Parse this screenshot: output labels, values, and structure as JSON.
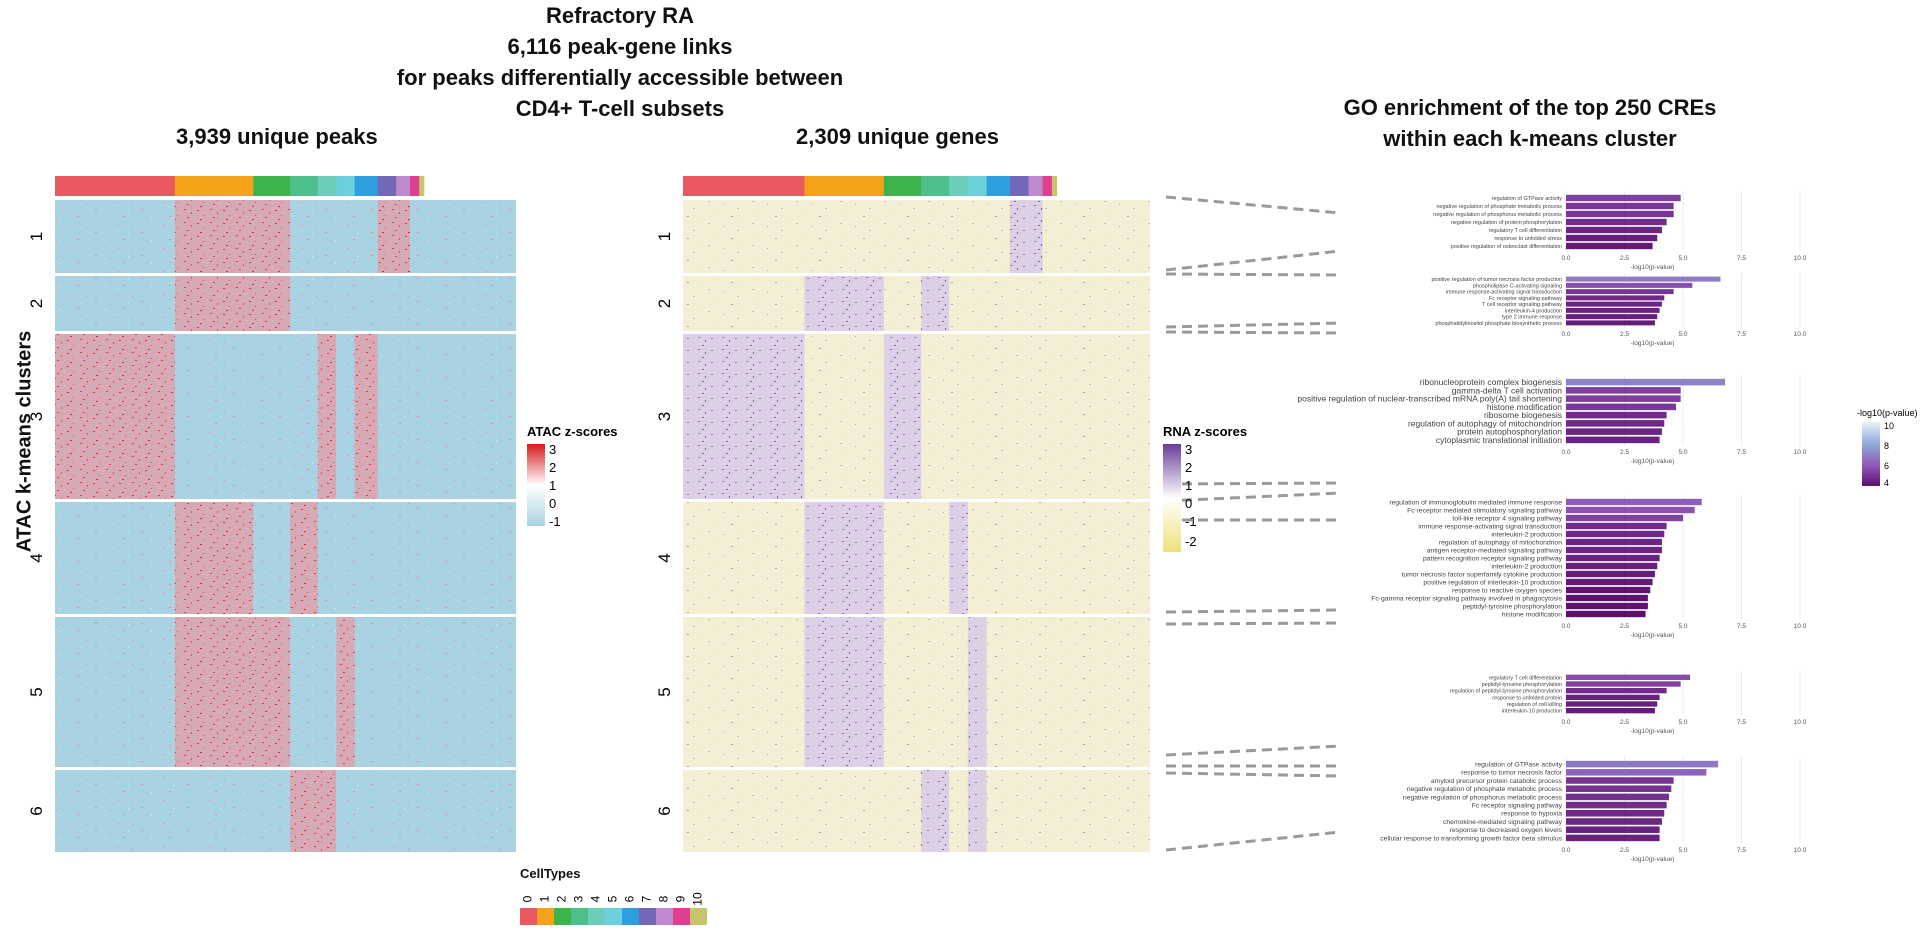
{
  "titles": {
    "main": [
      "Refractory RA",
      "6,116 peak-gene links",
      "for peaks differentially accessible between",
      "CD4+ T-cell subsets"
    ],
    "left_sub": "3,939 unique peaks",
    "mid_sub": "2,309 unique genes",
    "go": [
      "GO enrichment of the top 250 CREs",
      "within each k-means cluster"
    ],
    "y_axis": "ATAC k-means clusters"
  },
  "colors": {
    "atac_low": "#a9d3e3",
    "atac_high": "#e03030",
    "rna_low": "#eee17a",
    "rna_high": "#7a3f99",
    "celltype_palette": [
      "#e8585e",
      "#f5a21b",
      "#3cb44b",
      "#4dbf8a",
      "#6ccdbb",
      "#6ccfdc",
      "#2f9ee0",
      "#7368b7",
      "#c08ad0",
      "#de3f8f",
      "#c6c46c"
    ]
  },
  "legends": {
    "atac": {
      "title": "ATAC z-scores",
      "ticks": [
        "3",
        "2",
        "1",
        "0",
        "-1"
      ]
    },
    "rna": {
      "title": "RNA z-scores",
      "ticks": [
        "3",
        "2",
        "1",
        "0",
        "-1",
        "-2"
      ]
    },
    "go": {
      "title": "-log10(p-value)",
      "ticks": [
        "10",
        "8",
        "6",
        "4"
      ]
    },
    "celltypes": {
      "title": "CellTypes",
      "labels": [
        "0",
        "1",
        "2",
        "3",
        "4",
        "5",
        "6",
        "7",
        "8",
        "9",
        "10"
      ]
    }
  },
  "chart_data": [
    {
      "type": "heatmap",
      "name": "ATAC",
      "row_clusters": [
        "1",
        "2",
        "3",
        "4",
        "5",
        "6"
      ],
      "column_celltypes": [
        "0",
        "1",
        "2",
        "3",
        "4",
        "5",
        "6",
        "7",
        "8",
        "9",
        "10"
      ]
    },
    {
      "type": "heatmap",
      "name": "RNA",
      "row_clusters": [
        "1",
        "2",
        "3",
        "4",
        "5",
        "6"
      ],
      "column_celltypes": [
        "0",
        "1",
        "2",
        "3",
        "4",
        "5",
        "6",
        "7",
        "8",
        "9",
        "10"
      ]
    },
    {
      "type": "bar",
      "cluster": "1",
      "xlabel": "-log10(p-value)",
      "xlim": [
        0,
        10
      ],
      "xticks": [
        "0.0",
        "2.5",
        "5.0",
        "7.5",
        "10.0"
      ],
      "categories": [
        "regulation of GTPase activity",
        "negative regulation of phosphate metabolic process",
        "negative regulation of phosphorus metabolic process",
        "negative regulation of protein phosphorylation",
        "regulatory T cell differentiation",
        "response to unfolded stress",
        "positive regulation of osteoclast differentiation"
      ],
      "values": [
        4.9,
        4.6,
        4.6,
        4.3,
        4.1,
        3.9,
        3.7
      ]
    },
    {
      "type": "bar",
      "cluster": "2",
      "xlabel": "-log10(p-value)",
      "xlim": [
        0,
        10
      ],
      "xticks": [
        "0.0",
        "2.5",
        "5.0",
        "7.5",
        "10.0"
      ],
      "categories": [
        "positive regulation of tumor necrosis factor production",
        "phospholipase C-activating signaling",
        "immune response-activating signal transduction",
        "Fc receptor signaling pathway",
        "T cell receptor signaling pathway",
        "interleukin-4 production",
        "type 2 immune response",
        "phosphatidylinositol phosphate biosynthetic process"
      ],
      "values": [
        6.6,
        5.4,
        4.6,
        4.2,
        4.1,
        4.0,
        3.9,
        3.8
      ]
    },
    {
      "type": "bar",
      "cluster": "3",
      "xlabel": "-log10(p-value)",
      "xlim": [
        0,
        10
      ],
      "xticks": [
        "0.0",
        "2.5",
        "5.0",
        "7.5",
        "10.0"
      ],
      "categories": [
        "ribonucleoprotein complex biogenesis",
        "gamma-delta T cell activation",
        "positive regulation of nuclear-transcribed mRNA poly(A) tail shortening",
        "histone modification",
        "ribosome biogenesis",
        "regulation of autophagy of mitochondrion",
        "protein autophosphorylation",
        "cytoplasmic translational initiation"
      ],
      "values": [
        6.8,
        4.9,
        4.9,
        4.7,
        4.3,
        4.2,
        4.1,
        4.0
      ]
    },
    {
      "type": "bar",
      "cluster": "4",
      "xlabel": "-log10(p-value)",
      "xlim": [
        0,
        10
      ],
      "xticks": [
        "0.0",
        "2.5",
        "5.0",
        "7.5",
        "10.0"
      ],
      "categories": [
        "regulation of immunoglobulin mediated immune response",
        "Fc receptor mediated stimulatory signaling pathway",
        "toll-like receptor 4 signaling pathway",
        "immune response-activating signal transduction",
        "interleukin-2 production",
        "regulation of autophagy of mitochondrion",
        "antigen receptor-mediated signaling pathway",
        "pattern recognition receptor signaling pathway",
        "interleukin-2 production",
        "tumor necrosis factor superfamily cytokine production",
        "positive regulation of interleukin-10 production",
        "response to reactive oxygen species",
        "Fc-gamma receptor signaling pathway involved in phagocytosis",
        "peptidyl-tyrosine phosphorylation",
        "histone modification"
      ],
      "values": [
        5.8,
        5.5,
        5.0,
        4.3,
        4.2,
        4.1,
        4.1,
        4.0,
        3.9,
        3.8,
        3.7,
        3.6,
        3.5,
        3.5,
        3.4
      ]
    },
    {
      "type": "bar",
      "cluster": "5",
      "xlabel": "-log10(p-value)",
      "xlim": [
        0,
        10
      ],
      "xticks": [
        "0.0",
        "2.5",
        "5.0",
        "7.5",
        "10.0"
      ],
      "categories": [
        "regulatory T cell differentiation",
        "peptidyl-tyrosine phosphorylation",
        "regulation of peptidyl-tyrosine phosphorylation",
        "response to unfolded protein",
        "regulation of cell killing",
        "interleukin-10 production"
      ],
      "values": [
        5.3,
        4.9,
        4.3,
        4.0,
        3.9,
        3.8
      ]
    },
    {
      "type": "bar",
      "cluster": "6",
      "xlabel": "-log10(p-value)",
      "xlim": [
        0,
        10
      ],
      "xticks": [
        "0.0",
        "2.5",
        "5.0",
        "7.5",
        "10.0"
      ],
      "categories": [
        "regulation of GTPase activity",
        "response to tumor necrosis factor",
        "amyloid precursor protein catabolic process",
        "negative regulation of phosphate metabolic process",
        "negative regulation of phosphorus metabolic process",
        "Fc receptor signaling pathway",
        "response to hypoxia",
        "chemokine-mediated signaling pathway",
        "response to decreased oxygen levels",
        "cellular response to transforming growth factor beta stimulus"
      ],
      "values": [
        6.5,
        6.0,
        4.6,
        4.5,
        4.4,
        4.3,
        4.2,
        4.1,
        4.0,
        4.0
      ]
    }
  ]
}
